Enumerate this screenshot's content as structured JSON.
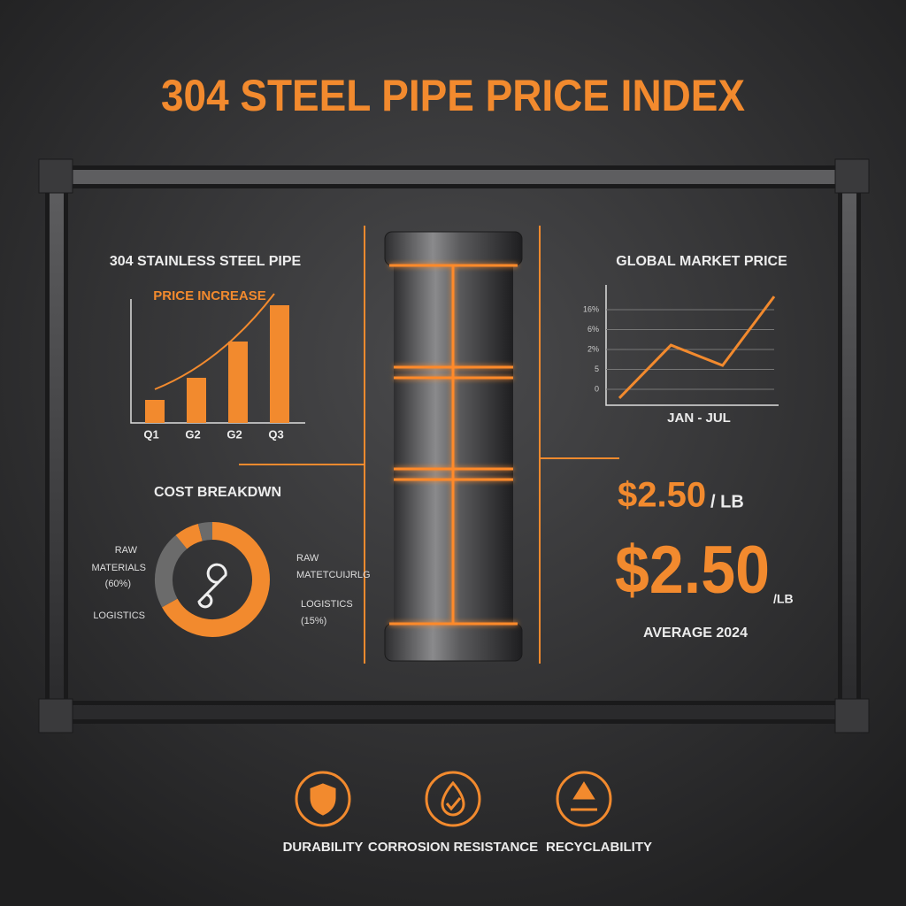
{
  "title": "304 STEEL PIPE PRICE INDEX",
  "chart_data": [
    {
      "type": "bar",
      "title": "304 STAINLESS STEEL PIPE",
      "annotation": "PRICE INCREASE",
      "categories": [
        "Q1",
        "G2",
        "G2",
        "Q3"
      ],
      "values": [
        26,
        51,
        92,
        133
      ],
      "color": "#f28a2e",
      "ylim": [
        0,
        140
      ]
    },
    {
      "type": "line",
      "title": "GLOBAL MARKET PRICE",
      "x_label": "JAN - JUL",
      "categories": [
        null,
        null,
        null,
        null
      ],
      "values": [
        -2.2,
        11.1,
        6,
        23.3
      ],
      "color": "#f28a2e",
      "ylim": [
        -4,
        24
      ],
      "yticks": [
        0,
        5,
        {
          "value": 10,
          "label": "2%"
        },
        {
          "value": 15,
          "label": "6%"
        },
        {
          "value": 20,
          "label": "16%"
        }
      ],
      "grid": true
    },
    {
      "type": "pie",
      "title": "COST BREAKDWN",
      "values": [
        67,
        22,
        7,
        4
      ],
      "colors": [
        "#f28a2e",
        "#6b6b6b",
        "#f28a2e",
        "#6b6b6b"
      ],
      "annotations": [
        "RAW",
        "MATERIALS",
        "(60%)",
        "LOGISTICS",
        "RAW",
        "MATETCUIJRLG",
        "LOGISTICS",
        "(15%)"
      ]
    }
  ],
  "price": {
    "small_value": "$2.50",
    "small_unit": "/ LB",
    "large_value": "$2.50",
    "large_unit": "/LB",
    "caption": "AVERAGE 2024"
  },
  "features": [
    "DURABILITY",
    "CORROSION RESISTANCE",
    "RECYCLABILITY"
  ]
}
